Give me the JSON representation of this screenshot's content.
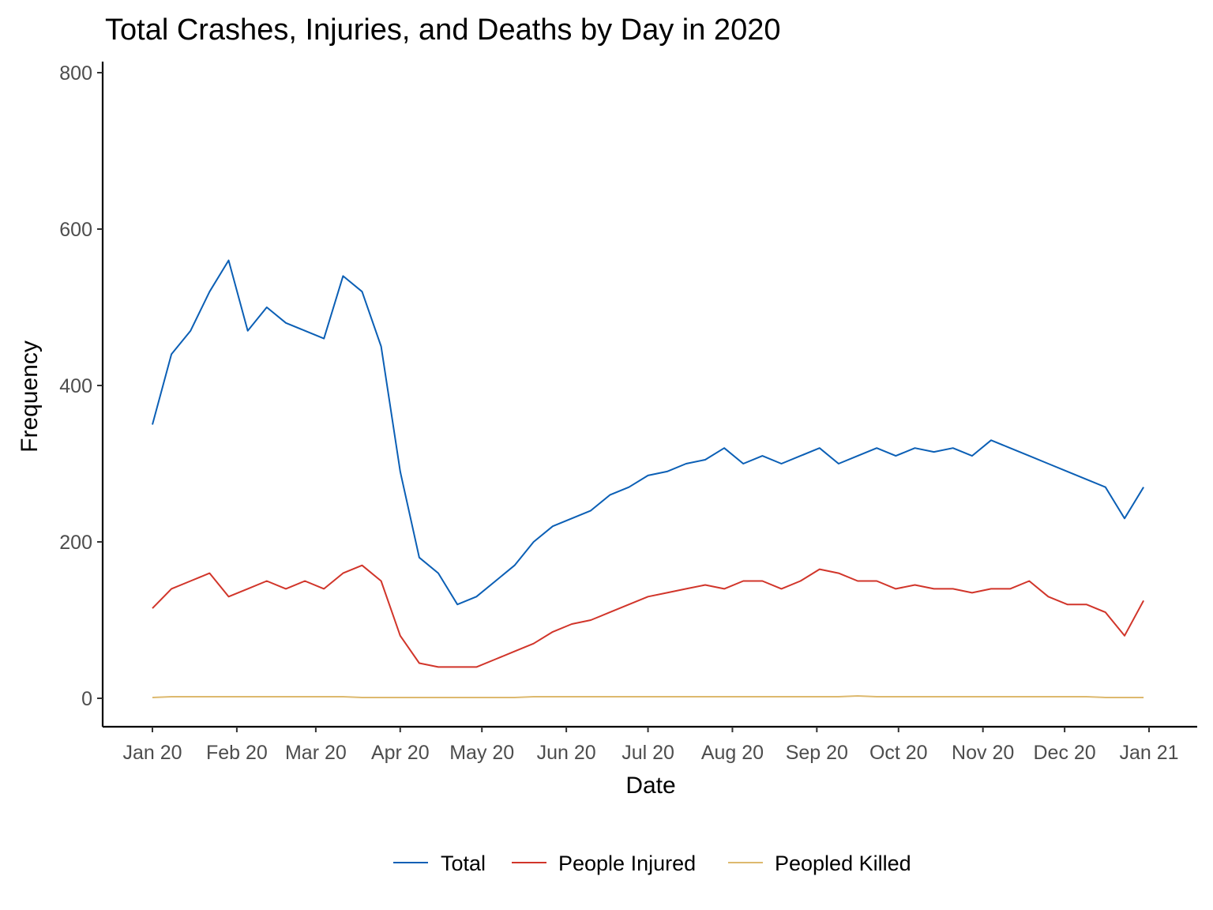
{
  "chart_data": {
    "type": "line",
    "title": "Total Crashes, Injuries, and Deaths by Day in 2020",
    "xlabel": "Date",
    "ylabel": "Frequency",
    "x_ticks": [
      "Jan 20",
      "Feb 20",
      "Mar 20",
      "Apr 20",
      "May 20",
      "Jun 20",
      "Jul 20",
      "Aug 20",
      "Sep 20",
      "Oct 20",
      "Nov 20",
      "Dec 20",
      "Jan 21"
    ],
    "x_range": [
      "2020-01-01",
      "2020-12-31"
    ],
    "y_ticks": [
      "0",
      "200",
      "400",
      "600",
      "800"
    ],
    "ylim": [
      0,
      800
    ],
    "grid": false,
    "legend_position": "bottom",
    "x_unit": "week starting",
    "x": [
      "2020-01-01",
      "2020-01-08",
      "2020-01-15",
      "2020-01-22",
      "2020-01-29",
      "2020-02-05",
      "2020-02-12",
      "2020-02-19",
      "2020-02-26",
      "2020-03-04",
      "2020-03-11",
      "2020-03-18",
      "2020-03-25",
      "2020-04-01",
      "2020-04-08",
      "2020-04-15",
      "2020-04-22",
      "2020-04-29",
      "2020-05-06",
      "2020-05-13",
      "2020-05-20",
      "2020-05-27",
      "2020-06-03",
      "2020-06-10",
      "2020-06-17",
      "2020-06-24",
      "2020-07-01",
      "2020-07-08",
      "2020-07-15",
      "2020-07-22",
      "2020-07-29",
      "2020-08-05",
      "2020-08-12",
      "2020-08-19",
      "2020-08-26",
      "2020-09-02",
      "2020-09-09",
      "2020-09-16",
      "2020-09-23",
      "2020-09-30",
      "2020-10-07",
      "2020-10-14",
      "2020-10-21",
      "2020-10-28",
      "2020-11-04",
      "2020-11-11",
      "2020-11-18",
      "2020-11-25",
      "2020-12-02",
      "2020-12-09",
      "2020-12-16",
      "2020-12-23",
      "2020-12-30"
    ],
    "series": [
      {
        "name": "Total",
        "color": "#0b5fb5",
        "values": [
          350,
          440,
          470,
          520,
          560,
          470,
          500,
          480,
          470,
          460,
          540,
          520,
          450,
          290,
          180,
          160,
          120,
          130,
          150,
          170,
          200,
          220,
          230,
          240,
          260,
          270,
          285,
          290,
          300,
          305,
          320,
          300,
          310,
          300,
          310,
          320,
          300,
          310,
          320,
          310,
          320,
          315,
          320,
          310,
          330,
          320,
          310,
          300,
          290,
          280,
          270,
          230,
          270
        ]
      },
      {
        "name": "People Injured",
        "color": "#d1352a",
        "values": [
          115,
          140,
          150,
          160,
          130,
          140,
          150,
          140,
          150,
          140,
          160,
          170,
          150,
          80,
          45,
          40,
          40,
          40,
          50,
          60,
          70,
          85,
          95,
          100,
          110,
          120,
          130,
          135,
          140,
          145,
          140,
          150,
          150,
          140,
          150,
          165,
          160,
          150,
          150,
          140,
          145,
          140,
          140,
          135,
          140,
          140,
          150,
          130,
          120,
          120,
          110,
          80,
          125
        ]
      },
      {
        "name": "Peopled Killed",
        "color": "#ddb96e",
        "values": [
          1,
          2,
          2,
          2,
          2,
          2,
          2,
          2,
          2,
          2,
          2,
          1,
          1,
          1,
          1,
          1,
          1,
          1,
          1,
          1,
          2,
          2,
          2,
          2,
          2,
          2,
          2,
          2,
          2,
          2,
          2,
          2,
          2,
          2,
          2,
          2,
          2,
          3,
          2,
          2,
          2,
          2,
          2,
          2,
          2,
          2,
          2,
          2,
          2,
          2,
          1,
          1,
          1
        ]
      }
    ]
  }
}
